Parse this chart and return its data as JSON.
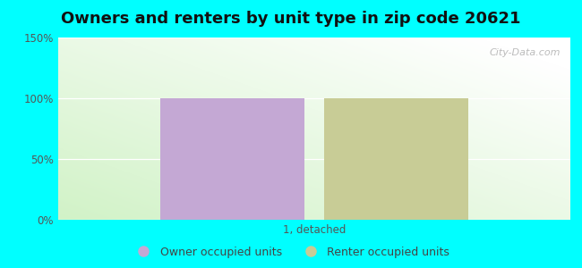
{
  "title": "Owners and renters by unit type in zip code 20621",
  "categories": [
    "1, detached"
  ],
  "owner_values": [
    100
  ],
  "renter_values": [
    100
  ],
  "owner_color": "#c4a8d4",
  "renter_color": "#c8cc96",
  "ylim": [
    0,
    150
  ],
  "yticks": [
    0,
    50,
    100,
    150
  ],
  "ytick_labels": [
    "0%",
    "50%",
    "100%",
    "150%"
  ],
  "legend_owner": "Owner occupied units",
  "legend_renter": "Renter occupied units",
  "watermark": "City-Data.com",
  "bg_outer": "#00FFFF",
  "bar_width": 0.28,
  "title_fontsize": 13,
  "grad_green": [
    0.82,
    0.95,
    0.78
  ],
  "grad_white": [
    1.0,
    1.0,
    1.0
  ]
}
